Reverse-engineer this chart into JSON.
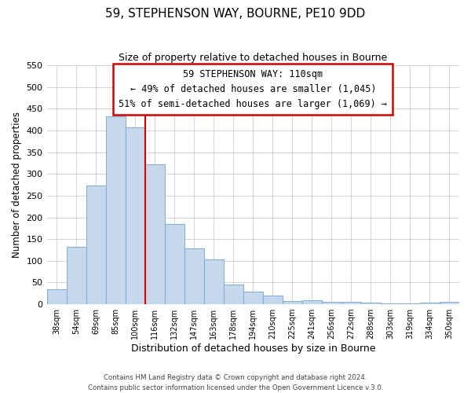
{
  "title": "59, STEPHENSON WAY, BOURNE, PE10 9DD",
  "subtitle": "Size of property relative to detached houses in Bourne",
  "xlabel": "Distribution of detached houses by size in Bourne",
  "ylabel": "Number of detached properties",
  "footer_lines": [
    "Contains HM Land Registry data © Crown copyright and database right 2024.",
    "Contains public sector information licensed under the Open Government Licence v.3.0."
  ],
  "bar_labels": [
    "38sqm",
    "54sqm",
    "69sqm",
    "85sqm",
    "100sqm",
    "116sqm",
    "132sqm",
    "147sqm",
    "163sqm",
    "178sqm",
    "194sqm",
    "210sqm",
    "225sqm",
    "241sqm",
    "256sqm",
    "272sqm",
    "288sqm",
    "303sqm",
    "319sqm",
    "334sqm",
    "350sqm"
  ],
  "bar_values": [
    35,
    133,
    273,
    433,
    407,
    323,
    184,
    128,
    103,
    46,
    30,
    20,
    8,
    9,
    5,
    5,
    3,
    2,
    2,
    4,
    5
  ],
  "bar_color": "#c5d8ee",
  "bar_edge_color": "#8ab0d0",
  "vline_x": 5,
  "vline_color": "#cc0000",
  "annotation_title": "59 STEPHENSON WAY: 110sqm",
  "annotation_line1": "← 49% of detached houses are smaller (1,045)",
  "annotation_line2": "51% of semi-detached houses are larger (1,069) →",
  "annotation_box_color": "#ffffff",
  "annotation_box_edge_color": "#cc0000",
  "ylim": [
    0,
    550
  ],
  "yticks": [
    0,
    50,
    100,
    150,
    200,
    250,
    300,
    350,
    400,
    450,
    500,
    550
  ],
  "grid_color": "#cccccc",
  "background_color": "#ffffff"
}
